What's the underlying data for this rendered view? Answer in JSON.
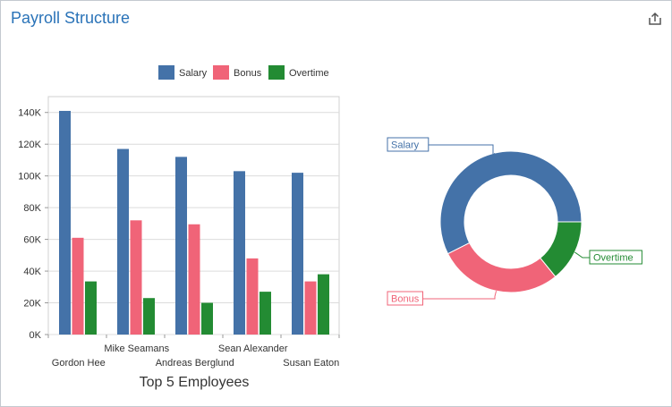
{
  "panel": {
    "title": "Payroll Structure",
    "export_icon": "share-export-icon"
  },
  "colors": {
    "salary": "#4472a8",
    "bonus": "#f06478",
    "overtime": "#238b33",
    "title": "#2a73b8",
    "grid": "#dcdcdc",
    "axis_text": "#333333"
  },
  "chart_data": [
    {
      "type": "bar",
      "title": "Top 5 Employees",
      "categories": [
        "Gordon Hee",
        "Mike Seamans",
        "Andreas Berglund",
        "Sean Alexander",
        "Susan Eaton"
      ],
      "series": [
        {
          "name": "Salary",
          "values": [
            141000,
            117000,
            112000,
            103000,
            102000
          ]
        },
        {
          "name": "Bonus",
          "values": [
            61000,
            72000,
            69500,
            48000,
            33500
          ]
        },
        {
          "name": "Overtime",
          "values": [
            33500,
            23000,
            20000,
            27000,
            38000
          ]
        }
      ],
      "ylim": [
        0,
        150000
      ],
      "yticks": [
        0,
        20000,
        40000,
        60000,
        80000,
        100000,
        120000,
        140000
      ],
      "ytick_labels": [
        "0K",
        "20K",
        "40K",
        "60K",
        "80K",
        "100K",
        "120K",
        "140K"
      ],
      "grid": true,
      "legend_position": "top"
    },
    {
      "type": "pie",
      "style": "donut",
      "labels": [
        "Salary",
        "Bonus",
        "Overtime"
      ],
      "values": [
        575000,
        284000,
        141500
      ]
    }
  ]
}
